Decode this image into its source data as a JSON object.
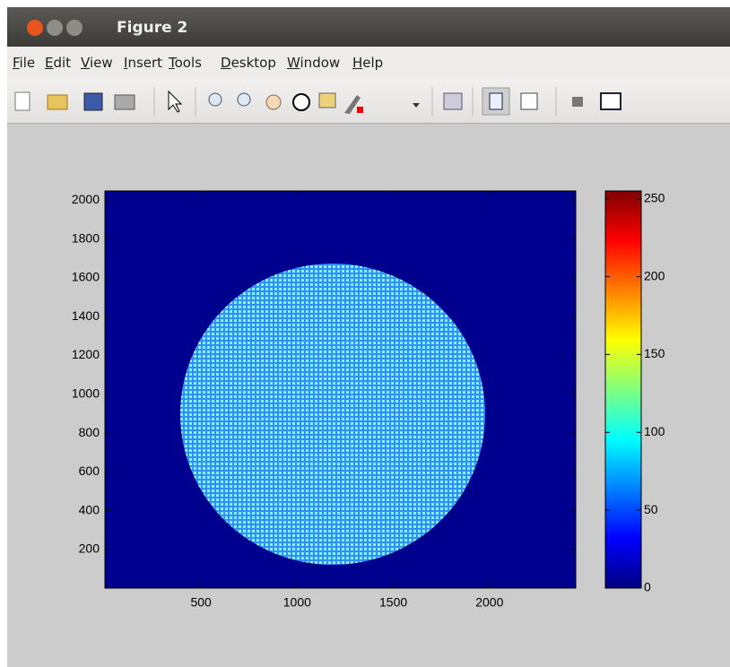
{
  "window": {
    "title": "Figure 2"
  },
  "menu": [
    "File",
    "Edit",
    "View",
    "Insert",
    "Tools",
    "Desktop",
    "Window",
    "Help"
  ],
  "chart_data": {
    "type": "image",
    "colormap": "jet",
    "xlim": [
      0.5,
      2448.5
    ],
    "ylim": [
      0.5,
      2048.5
    ],
    "xticks": [
      500,
      1000,
      1500,
      2000
    ],
    "yticks": [
      200,
      400,
      600,
      800,
      1000,
      1200,
      1400,
      1600,
      1800,
      2000
    ],
    "colorbar": {
      "clim": [
        0,
        255
      ],
      "ticks": [
        0,
        50,
        100,
        150,
        200,
        250
      ]
    }
  }
}
